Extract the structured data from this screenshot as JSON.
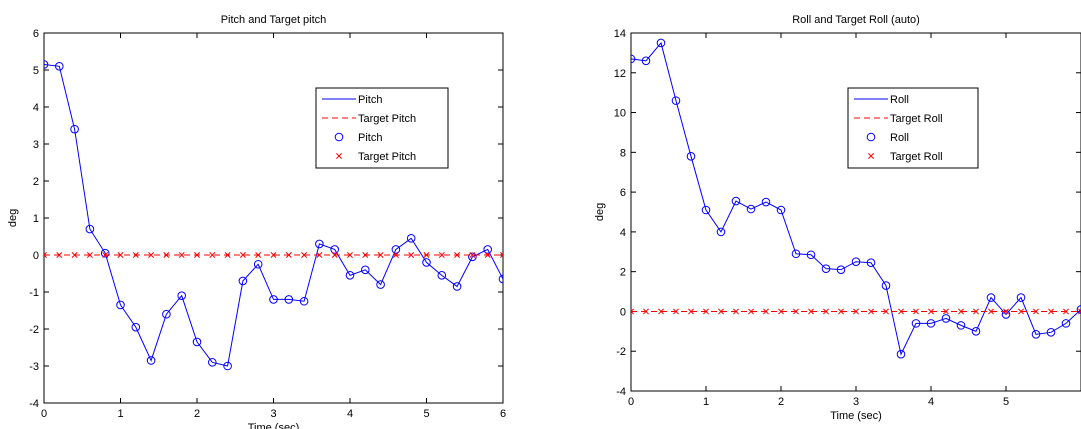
{
  "chart_data": [
    {
      "type": "line",
      "title": "Pitch and Target pitch",
      "xlabel": "Time (sec)",
      "ylabel": "deg",
      "xlim": [
        0,
        6
      ],
      "ylim": [
        -4,
        6
      ],
      "xticks": [
        0,
        1,
        2,
        3,
        4,
        5,
        6
      ],
      "yticks": [
        -4,
        -3,
        -2,
        -1,
        0,
        1,
        2,
        3,
        4,
        5,
        6
      ],
      "grid": false,
      "legend_position": "top-right",
      "legend": [
        "Pitch",
        "Target Pitch",
        "Pitch",
        "Target Pitch"
      ],
      "x": [
        0,
        0.2,
        0.4,
        0.6,
        0.8,
        1.0,
        1.2,
        1.4,
        1.6,
        1.8,
        2.0,
        2.2,
        2.4,
        2.6,
        2.8,
        3.0,
        3.2,
        3.4,
        3.6,
        3.8,
        4.0,
        4.2,
        4.4,
        4.6,
        4.8,
        5.0,
        5.2,
        5.4,
        5.6,
        5.8,
        6.0
      ],
      "series": [
        {
          "name": "Pitch",
          "style": "solid-line-circle-markers",
          "color": "#0000ff",
          "values": [
            5.15,
            5.1,
            3.4,
            0.7,
            0.05,
            -1.35,
            -1.95,
            -2.85,
            -1.6,
            -1.1,
            -2.35,
            -2.9,
            -3.0,
            -0.7,
            -0.25,
            -1.2,
            -1.2,
            -1.25,
            0.3,
            0.15,
            -0.55,
            -0.4,
            -0.8,
            0.15,
            0.45,
            -0.2,
            -0.55,
            -0.85,
            -0.05,
            0.15,
            -0.65
          ]
        },
        {
          "name": "Target Pitch",
          "style": "dashed-line-x-markers",
          "color": "#ff0000",
          "values": [
            0,
            0,
            0,
            0,
            0,
            0,
            0,
            0,
            0,
            0,
            0,
            0,
            0,
            0,
            0,
            0,
            0,
            0,
            0,
            0,
            0,
            0,
            0,
            0,
            0,
            0,
            0,
            0,
            0,
            0,
            0
          ]
        }
      ]
    },
    {
      "type": "line",
      "title": "Roll and Target Roll (auto)",
      "xlabel": "Time (sec)",
      "ylabel": "deg",
      "xlim": [
        0,
        6
      ],
      "ylim": [
        -4,
        14
      ],
      "xticks": [
        0,
        1,
        2,
        3,
        4,
        5
      ],
      "yticks": [
        -4,
        -2,
        0,
        2,
        4,
        6,
        8,
        10,
        12,
        14
      ],
      "grid": false,
      "legend_position": "top-right",
      "legend": [
        "Roll",
        "Target Roll",
        "Roll",
        "Target Roll"
      ],
      "x": [
        0,
        0.2,
        0.4,
        0.6,
        0.8,
        1.0,
        1.2,
        1.4,
        1.6,
        1.8,
        2.0,
        2.2,
        2.4,
        2.6,
        2.8,
        3.0,
        3.2,
        3.4,
        3.6,
        3.8,
        4.0,
        4.2,
        4.4,
        4.6,
        4.8,
        5.0,
        5.2,
        5.4,
        5.6,
        5.8,
        6.0
      ],
      "series": [
        {
          "name": "Roll",
          "style": "solid-line-circle-markers",
          "color": "#0000ff",
          "values": [
            12.7,
            12.6,
            13.5,
            10.6,
            7.8,
            5.1,
            4.0,
            5.55,
            5.15,
            5.5,
            5.1,
            2.9,
            2.85,
            2.15,
            2.1,
            2.5,
            2.45,
            1.3,
            -2.15,
            -0.6,
            -0.6,
            -0.35,
            -0.7,
            -1.0,
            0.7,
            -0.15,
            0.7,
            -1.15,
            -1.05,
            -0.6,
            0.1
          ]
        },
        {
          "name": "Target Roll",
          "style": "dashed-line-x-markers",
          "color": "#ff0000",
          "values": [
            0,
            0,
            0,
            0,
            0,
            0,
            0,
            0,
            0,
            0,
            0,
            0,
            0,
            0,
            0,
            0,
            0,
            0,
            0,
            0,
            0,
            0,
            0,
            0,
            0,
            0,
            0,
            0,
            0,
            0,
            0
          ]
        }
      ]
    }
  ]
}
